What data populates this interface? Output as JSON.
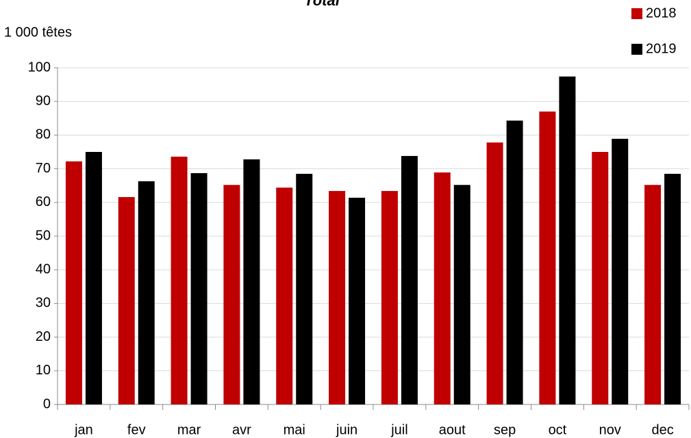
{
  "chart_data": {
    "type": "bar",
    "title": "Total",
    "y_label": "1 000 têtes",
    "categories": [
      "jan",
      "fev",
      "mar",
      "avr",
      "mai",
      "juin",
      "juil",
      "aout",
      "sep",
      "oct",
      "nov",
      "dec"
    ],
    "series": [
      {
        "name": "2018",
        "color": "#c00000",
        "values": [
          72.2,
          61.6,
          73.6,
          65.2,
          64.4,
          63.4,
          63.4,
          68.9,
          77.8,
          87.0,
          75.0,
          65.2
        ]
      },
      {
        "name": "2019",
        "color": "#000000",
        "values": [
          75.0,
          66.3,
          68.7,
          72.8,
          68.5,
          61.4,
          73.8,
          65.2,
          84.3,
          97.4,
          78.9,
          68.5
        ]
      }
    ],
    "ylim": [
      0,
      100
    ],
    "yticks": [
      0,
      10,
      20,
      30,
      40,
      50,
      60,
      70,
      80,
      90,
      100
    ],
    "grid": true,
    "legend": "top-right"
  }
}
